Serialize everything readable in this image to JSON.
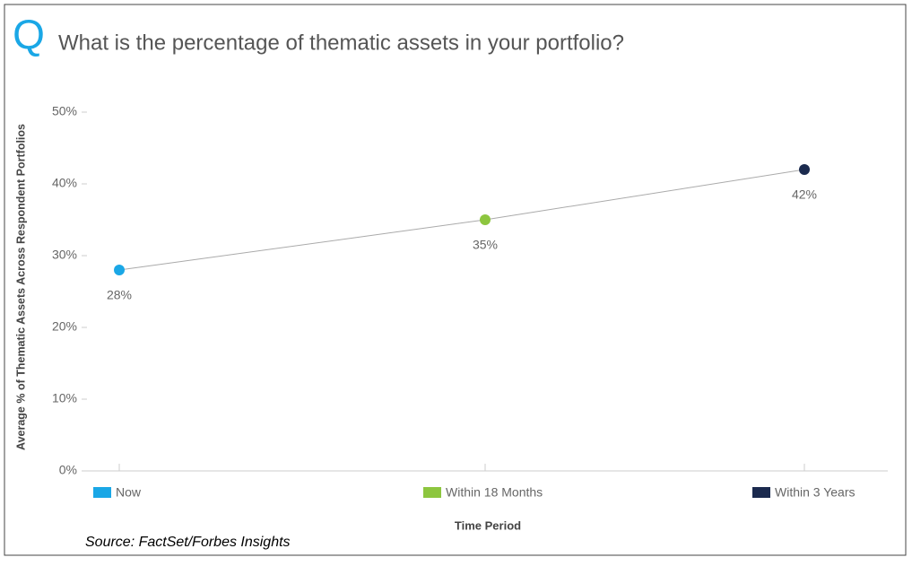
{
  "chart_data": {
    "type": "line",
    "title": "What is the percentage of thematic assets in your portfolio?",
    "icon": "Q",
    "y_label": "Average % of Thematic Assets Across Respondent Portfolios",
    "x_label": "Time Period",
    "source": "Source: FactSet/Forbes Insights",
    "categories": [
      "Now",
      "Within 18 Months",
      "Within 3 Years"
    ],
    "point_colors": [
      "#1aa7e6",
      "#8dc63f",
      "#1b2a4e"
    ],
    "line_color": "#aaaaaa",
    "values": [
      28,
      35,
      42
    ],
    "value_labels": [
      "28%",
      "35%",
      "42%"
    ],
    "ylim": [
      0,
      50
    ],
    "yticks": [
      {
        "value": 0,
        "label": "0%"
      },
      {
        "value": 10,
        "label": "10%"
      },
      {
        "value": 20,
        "label": "20%"
      },
      {
        "value": 30,
        "label": "30%"
      },
      {
        "value": 40,
        "label": "40%"
      },
      {
        "value": 50,
        "label": "50%"
      }
    ]
  }
}
